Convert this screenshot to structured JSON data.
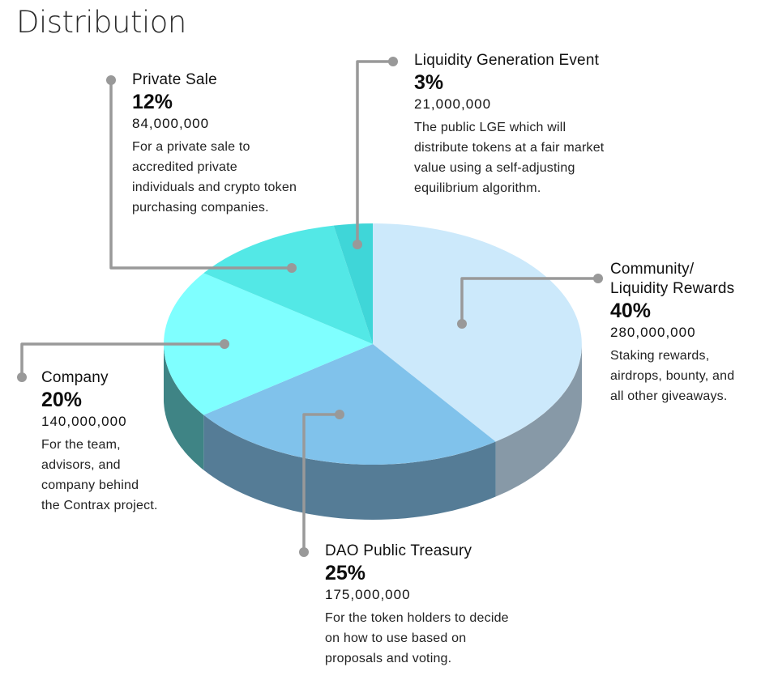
{
  "title": "Distribution",
  "colors": {
    "leader": "#999999",
    "community_top": "#CCE9FB",
    "dao_top": "#80C2EB",
    "company_top": "#7FFFFF",
    "private_top": "#53E8E6",
    "lge_top": "#3FD6D8"
  },
  "chart_data": {
    "type": "pie",
    "title": "Distribution",
    "style": "3d",
    "slices": [
      {
        "key": "community",
        "label": "Community/\nLiquidity Rewards",
        "label_lines": [
          "Community/",
          "Liquidity Rewards"
        ],
        "percent": 40,
        "percent_label": "40%",
        "amount": 280000000,
        "amount_label": "280,000,000",
        "description": "Staking rewards, airdrops, bounty, and all other giveaways.",
        "description_lines": [
          "Staking rewards,",
          "airdrops, bounty, and",
          "all other giveaways."
        ],
        "color": "#CCE9FB",
        "side_color": "#8799A7"
      },
      {
        "key": "dao",
        "label": "DAO Public Treasury",
        "label_lines": [
          "DAO Public Treasury"
        ],
        "percent": 25,
        "percent_label": "25%",
        "amount": 175000000,
        "amount_label": "175,000,000",
        "description": "For the token holders to decide on how to use based on proposals and voting.",
        "description_lines": [
          "For the token holders to decide",
          "on how to use based on",
          "proposals and voting."
        ],
        "color": "#80C2EB",
        "side_color": "#557C96"
      },
      {
        "key": "company",
        "label": "Company",
        "label_lines": [
          "Company"
        ],
        "percent": 20,
        "percent_label": "20%",
        "amount": 140000000,
        "amount_label": "140,000,000",
        "description": "For the team, advisors, and company behind the Contrax project.",
        "description_lines": [
          "For the team,",
          "advisors, and",
          "company behind",
          "the Contrax project."
        ],
        "color": "#7FFFFF",
        "side_color": "#3F8485"
      },
      {
        "key": "private",
        "label": "Private Sale",
        "label_lines": [
          "Private Sale"
        ],
        "percent": 12,
        "percent_label": "12%",
        "amount": 84000000,
        "amount_label": "84,000,000",
        "description": "For a private sale to accredited private individuals and crypto token purchasing companies.",
        "description_lines": [
          "For a private sale to",
          "accredited private",
          "individuals and crypto token",
          "purchasing companies."
        ],
        "color": "#53E8E6",
        "side_color": "#2E8A89"
      },
      {
        "key": "lge",
        "label": "Liquidity Generation Event",
        "label_lines": [
          "Liquidity Generation Event"
        ],
        "percent": 3,
        "percent_label": "3%",
        "amount": 21000000,
        "amount_label": "21,000,000",
        "description": "The public LGE which will distribute tokens at a fair market value using a self-adjusting equilibrium algorithm.",
        "description_lines": [
          "The public LGE which will",
          "distribute tokens at a fair market",
          "value using a self-adjusting",
          "equilibrium algorithm."
        ],
        "color": "#3FD6D8",
        "side_color": "#2A8C8E"
      }
    ]
  }
}
